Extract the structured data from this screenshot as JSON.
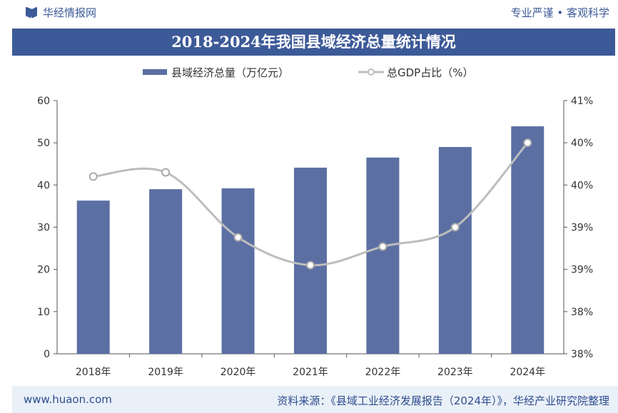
{
  "header": {
    "brand": "华经情报网",
    "slogan": "专业严谨 • 客观科学"
  },
  "footer": {
    "url": "www.huaon.com",
    "source": "资料来源：《县域工业经济发展报告（2024年）》，华经产业研究院整理"
  },
  "chart_data": {
    "type": "bar+line",
    "title": "2018-2024年我国县域经济总量统计情况",
    "categories": [
      "2018年",
      "2019年",
      "2020年",
      "2021年",
      "2022年",
      "2023年",
      "2024年"
    ],
    "series": [
      {
        "name": "县域经济总量（万亿元）",
        "type": "bar",
        "axis": "left",
        "color": "#5b6fa3",
        "values": [
          36.3,
          39.0,
          39.2,
          44.1,
          46.5,
          49.0,
          53.9
        ]
      },
      {
        "name": "总GDP占比（%）",
        "type": "line",
        "axis": "right",
        "color": "#bdbdbd",
        "values": [
          39.6,
          39.65,
          38.88,
          38.55,
          38.77,
          39.0,
          40.0
        ]
      }
    ],
    "left_axis": {
      "range": [
        0,
        60
      ],
      "ticks": [
        "0",
        "10",
        "20",
        "30",
        "40",
        "50",
        "60"
      ]
    },
    "right_axis": {
      "range": [
        37.5,
        40.5
      ],
      "ticks": [
        "38%",
        "38%",
        "39%",
        "39%",
        "40%",
        "40%",
        "41%"
      ]
    },
    "grid": false,
    "legend": "top"
  }
}
